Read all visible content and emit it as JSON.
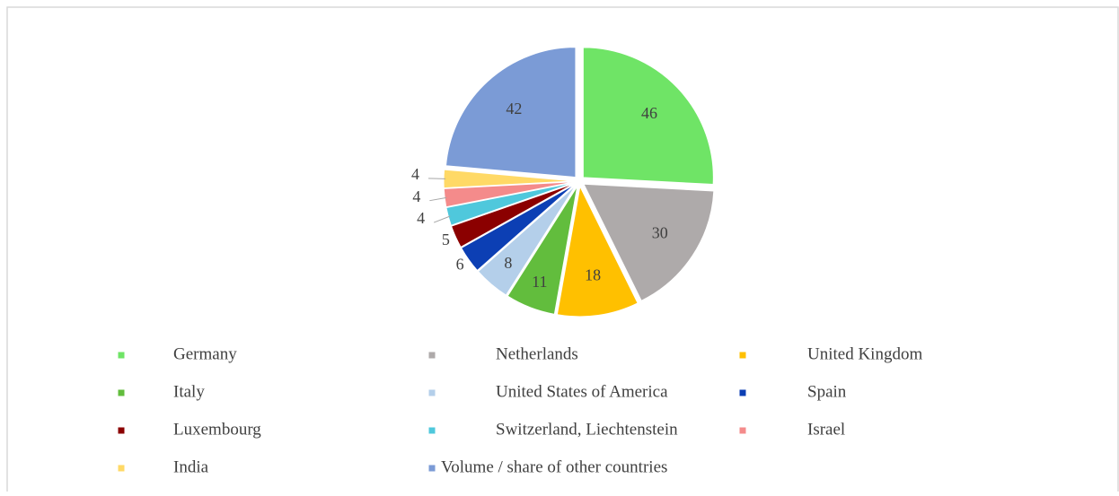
{
  "chart_data": {
    "type": "pie",
    "categories": [
      "Germany",
      "Netherlands",
      "United Kingdom",
      "Italy",
      "United States of America",
      "Spain",
      "Luxembourg",
      "Switzerland, Liechtenstein",
      "Israel",
      "India",
      "Volume / share of other countries"
    ],
    "values": [
      46,
      30,
      18,
      11,
      8,
      6,
      5,
      4,
      4,
      4,
      42
    ],
    "colors": [
      "#6fe466",
      "#aeaaaa",
      "#ffc000",
      "#62bd3d",
      "#b4cfea",
      "#0c3fb4",
      "#8b0000",
      "#4fc8dc",
      "#f48b8b",
      "#ffd966",
      "#7b9bd6"
    ],
    "legend": "bottom"
  }
}
